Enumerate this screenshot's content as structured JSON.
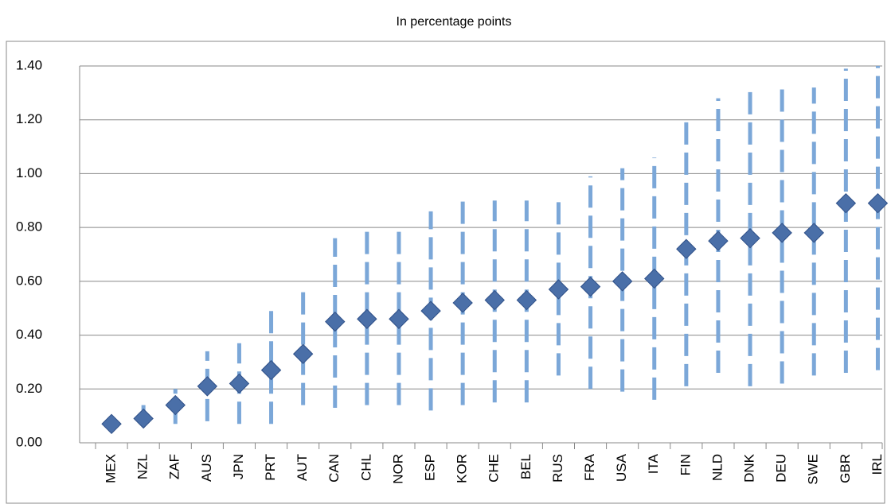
{
  "chart_data": {
    "type": "range-dot",
    "title": "In percentage points",
    "categories": [
      "MEX",
      "NZL",
      "ZAF",
      "AUS",
      "JPN",
      "PRT",
      "AUT",
      "CAN",
      "CHL",
      "NOR",
      "ESP",
      "KOR",
      "CHE",
      "BEL",
      "RUS",
      "FRA",
      "USA",
      "ITA",
      "FIN",
      "NLD",
      "DNK",
      "DEU",
      "SWE",
      "GBR",
      "IRL"
    ],
    "values": [
      0.07,
      0.09,
      0.14,
      0.21,
      0.22,
      0.27,
      0.33,
      0.45,
      0.46,
      0.46,
      0.49,
      0.52,
      0.53,
      0.53,
      0.57,
      0.58,
      0.6,
      0.61,
      0.72,
      0.75,
      0.76,
      0.78,
      0.78,
      0.89,
      0.89
    ],
    "low": [
      0.06,
      0.07,
      0.07,
      0.08,
      0.07,
      0.07,
      0.14,
      0.13,
      0.14,
      0.14,
      0.12,
      0.14,
      0.15,
      0.15,
      0.25,
      0.2,
      0.19,
      0.16,
      0.21,
      0.26,
      0.21,
      0.22,
      0.25,
      0.26,
      0.27
    ],
    "high": [
      0.08,
      0.14,
      0.2,
      0.34,
      0.37,
      0.49,
      0.57,
      0.76,
      0.81,
      0.8,
      0.86,
      0.9,
      0.9,
      0.9,
      0.91,
      0.99,
      1.02,
      1.06,
      1.22,
      1.28,
      1.31,
      1.33,
      1.32,
      1.39,
      1.4
    ],
    "color": "#4a6fa8",
    "range_color": "#7ba7d8",
    "ylim": [
      0,
      1.4
    ],
    "yticks": [
      {
        "value": 0,
        "label": "0.00"
      },
      {
        "value": 0.2,
        "label": "0.20"
      },
      {
        "value": 0.4,
        "label": "0.40"
      },
      {
        "value": 0.6,
        "label": "0.60"
      },
      {
        "value": 0.8,
        "label": "0.80"
      },
      {
        "value": 1.0,
        "label": "1.00"
      },
      {
        "value": 1.2,
        "label": "1.20"
      },
      {
        "value": 1.4,
        "label": "1.40"
      }
    ],
    "grid": true
  }
}
